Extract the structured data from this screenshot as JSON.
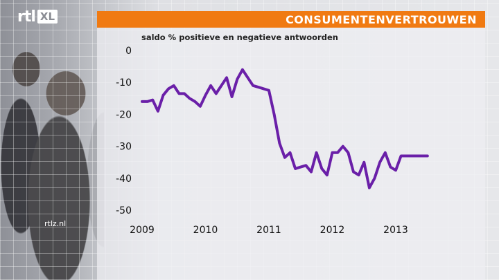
{
  "logo": {
    "rtl": "rtl",
    "xl": "XL"
  },
  "banner": {
    "title": "CONSUMENTENVERTROUWEN",
    "color": "#f07a12"
  },
  "subtitle": "saldo % positieve en negatieve antwoorden",
  "watermark": "rtlz.nl",
  "chart_data": {
    "type": "line",
    "title": "CONSUMENTENVERTROUWEN",
    "subtitle": "saldo % positieve en negatieve antwoorden",
    "xlabel": "",
    "ylabel": "",
    "ylim": [
      -50,
      0
    ],
    "y_ticks": [
      0,
      -10,
      -20,
      -30,
      -40,
      -50
    ],
    "x_ticks": [
      "2009",
      "2010",
      "2011",
      "2012",
      "2013"
    ],
    "grid": false,
    "line_color": "#6a1fa8",
    "series": [
      {
        "x": [
          "2009-01",
          "2009-02",
          "2009-03",
          "2009-04",
          "2009-05",
          "2009-06",
          "2009-07",
          "2009-08",
          "2009-09",
          "2009-10",
          "2009-11",
          "2009-12",
          "2010-01",
          "2010-02",
          "2010-03",
          "2010-04",
          "2010-05",
          "2010-06",
          "2010-07",
          "2010-08",
          "2010-09",
          "2010-10",
          "2010-11",
          "2010-12",
          "2011-01",
          "2011-02",
          "2011-03",
          "2011-04",
          "2011-05",
          "2011-06",
          "2011-07",
          "2011-08",
          "2011-09",
          "2011-10",
          "2011-11",
          "2011-12",
          "2012-01",
          "2012-02",
          "2012-03",
          "2012-04",
          "2012-05",
          "2012-06",
          "2012-07",
          "2012-08",
          "2012-09",
          "2012-10",
          "2012-11",
          "2012-12",
          "2013-01",
          "2013-02",
          "2013-03",
          "2013-04",
          "2013-05",
          "2013-06",
          "2013-07"
        ],
        "values": [
          -16,
          -16,
          -15.5,
          -19,
          -14,
          -12,
          -11,
          -13.5,
          -13.5,
          -15,
          -16,
          -17.5,
          -14,
          -11,
          -13.5,
          -11,
          -8.5,
          -14.5,
          -9,
          -6,
          -8.5,
          -11,
          -11.5,
          -12,
          -12.5,
          -20,
          -29,
          -33.5,
          -32,
          -37,
          -36.5,
          -36,
          -38,
          -32,
          -37,
          -39,
          -32,
          -32,
          -30,
          -32,
          -38,
          -39,
          -35,
          -43,
          -40,
          -35,
          -32,
          -36.5,
          -37.5,
          -33,
          -33,
          -33,
          -33,
          -33,
          -33
        ]
      }
    ]
  }
}
